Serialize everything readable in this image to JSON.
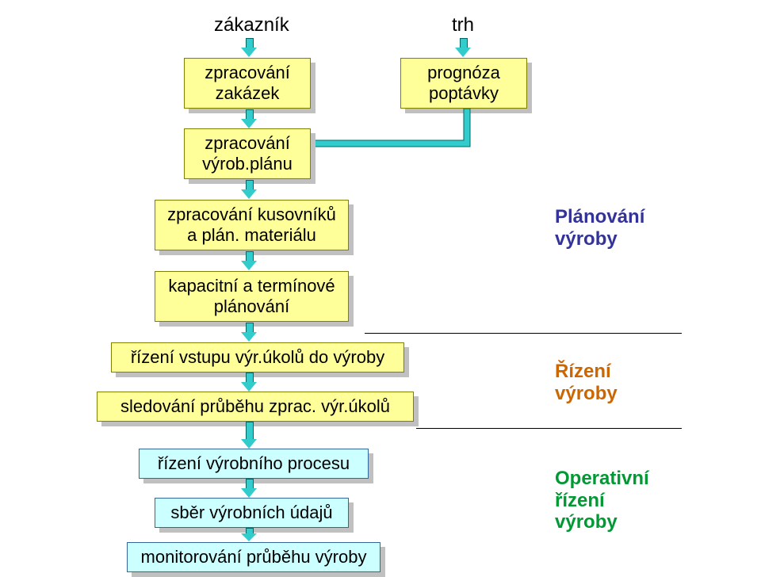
{
  "colors": {
    "yellow_fill": "#ffff99",
    "yellow_border": "#808000",
    "blue_fill": "#ccffff",
    "blue_border": "#336699",
    "arrow_fill": "#33cccc",
    "arrow_border": "#006666",
    "shadow": "#c0c0c0",
    "text": "#000000",
    "side1": "#333399",
    "side2": "#cc6600",
    "side3": "#009933"
  },
  "top_labels": {
    "customer": "zákazník",
    "market": "trh"
  },
  "boxes": {
    "b1": "zpracování\nzakázek",
    "b2": "prognóza\npoptávky",
    "b3": "zpracování\nvýrob.plánu",
    "b4": "zpracování kusovníků\na plán. materiálu",
    "b5": "kapacitní a termínové\nplánování",
    "b6": "řízení vstupu výr.úkolů do výroby",
    "b7": "sledování průběhu zprac. výr.úkolů",
    "b8": "řízení výrobního procesu",
    "b9": "sběr výrobních údajů",
    "b10": "monitorování průběhu výroby"
  },
  "side_labels": {
    "s1": "Plánování\nvýroby",
    "s2": "Řízení\nvýroby",
    "s3": "Operativní\nřízení\nvýroby"
  }
}
